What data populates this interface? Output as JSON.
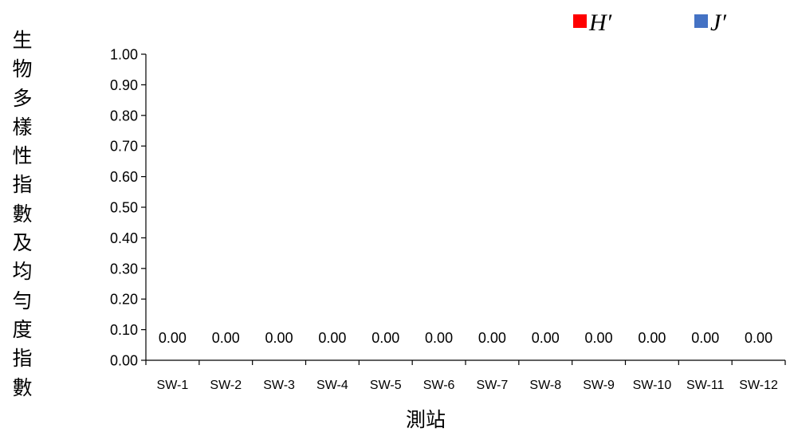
{
  "chart_data": {
    "type": "bar",
    "title": "",
    "xlabel": "測站",
    "ylabel": "生物多樣性指數及均勻度指數",
    "categories": [
      "SW-1",
      "SW-2",
      "SW-3",
      "SW-4",
      "SW-5",
      "SW-6",
      "SW-7",
      "SW-8",
      "SW-9",
      "SW-10",
      "SW-11",
      "SW-12"
    ],
    "series": [
      {
        "name": "H′",
        "color": "#ff0000",
        "values": [
          0,
          0,
          0,
          0,
          0,
          0,
          0,
          0,
          0,
          0,
          0,
          0
        ]
      },
      {
        "name": "J′",
        "color": "#4472c4",
        "values": [
          0,
          0,
          0,
          0,
          0,
          0,
          0,
          0,
          0,
          0,
          0,
          0
        ]
      }
    ],
    "data_labels": [
      "0.00",
      "0.00",
      "0.00",
      "0.00",
      "0.00",
      "0.00",
      "0.00",
      "0.00",
      "0.00",
      "0.00",
      "0.00",
      "0.00"
    ],
    "ylim": [
      0,
      1
    ],
    "yticks": [
      "0.00",
      "0.10",
      "0.20",
      "0.30",
      "0.40",
      "0.50",
      "0.60",
      "0.70",
      "0.80",
      "0.90",
      "1.00"
    ],
    "grid": false,
    "legend_position": "top-right"
  }
}
